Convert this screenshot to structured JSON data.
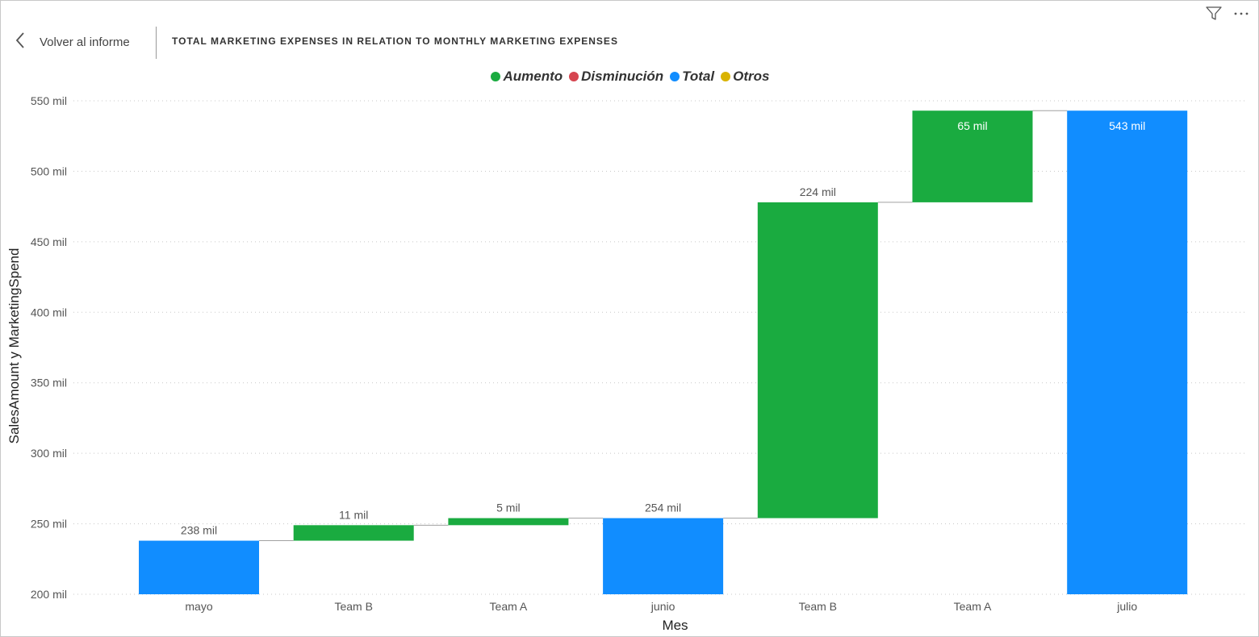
{
  "header": {
    "back_label": "Volver al informe",
    "title": "TOTAL MARKETING EXPENSES IN RELATION TO MONTHLY MARKETING EXPENSES"
  },
  "toolbar": {
    "filter_icon": "filter-icon",
    "more_icon": "more-options-icon"
  },
  "legend": [
    {
      "label": "Aumento",
      "color": "#1aab40"
    },
    {
      "label": "Disminución",
      "color": "#d64550"
    },
    {
      "label": "Total",
      "color": "#118dff"
    },
    {
      "label": "Otros",
      "color": "#d9b300"
    }
  ],
  "chart_data": {
    "type": "waterfall",
    "title": "TOTAL MARKETING EXPENSES IN RELATION TO MONTHLY MARKETING EXPENSES",
    "xlabel": "Mes",
    "ylabel": "SalesAmount y MarketingSpend",
    "ylim": [
      200,
      550
    ],
    "yticks": [
      200,
      250,
      300,
      350,
      400,
      450,
      500,
      550
    ],
    "ytick_suffix": " mil",
    "grid": true,
    "legend_position": "top-center",
    "bars": [
      {
        "category": "mayo",
        "kind": "total",
        "start": 200,
        "end": 238,
        "label": "238 mil"
      },
      {
        "category": "Team B",
        "kind": "increase",
        "start": 238,
        "end": 249,
        "label": "11 mil"
      },
      {
        "category": "Team A",
        "kind": "increase",
        "start": 249,
        "end": 254,
        "label": "5 mil"
      },
      {
        "category": "junio",
        "kind": "total",
        "start": 200,
        "end": 254,
        "label": "254 mil"
      },
      {
        "category": "Team B",
        "kind": "increase",
        "start": 254,
        "end": 478,
        "label": "224 mil"
      },
      {
        "category": "Team A",
        "kind": "increase",
        "start": 478,
        "end": 543,
        "label": "65 mil"
      },
      {
        "category": "julio",
        "kind": "total",
        "start": 200,
        "end": 543,
        "label": "543 mil"
      }
    ],
    "colors": {
      "increase": "#1aab40",
      "decrease": "#d64550",
      "total": "#118dff",
      "other": "#d9b300"
    }
  }
}
